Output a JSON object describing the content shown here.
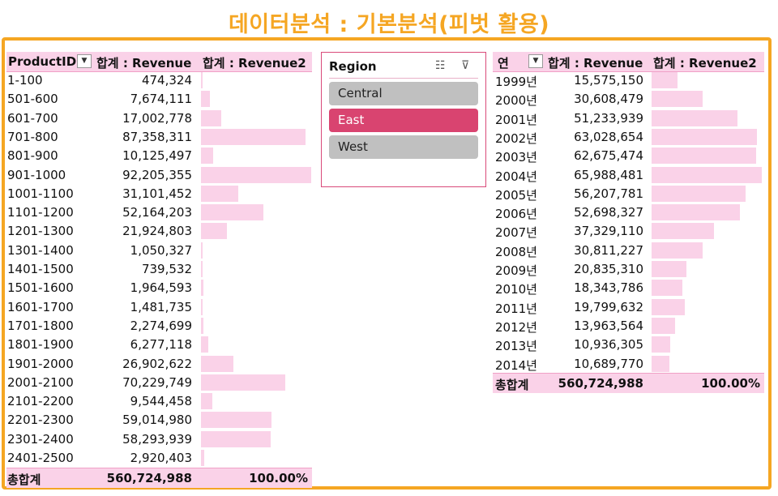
{
  "title": "데이터분석 : 기본분석(피벗 활용)",
  "colors": {
    "accent": "#f5a623",
    "header_fill": "#fad2e8",
    "bar_fill": "#fad2e8",
    "slicer_selected": "#d94470",
    "slicer_unselected": "#c0c0c0"
  },
  "left_pivot": {
    "headers": [
      "ProductID",
      "합계 : Revenue",
      "합계 : Revenue2"
    ],
    "rows": [
      {
        "label": "1-100",
        "value": "474,324",
        "pct": 0.0051
      },
      {
        "label": "501-600",
        "value": "7,674,111",
        "pct": 0.0832
      },
      {
        "label": "601-700",
        "value": "17,002,778",
        "pct": 0.1844
      },
      {
        "label": "701-800",
        "value": "87,358,311",
        "pct": 0.9474
      },
      {
        "label": "801-900",
        "value": "10,125,497",
        "pct": 0.1098
      },
      {
        "label": "901-1000",
        "value": "92,205,355",
        "pct": 1.0
      },
      {
        "label": "1001-1100",
        "value": "31,101,452",
        "pct": 0.3373
      },
      {
        "label": "1101-1200",
        "value": "52,164,203",
        "pct": 0.5657
      },
      {
        "label": "1201-1300",
        "value": "21,924,803",
        "pct": 0.2378
      },
      {
        "label": "1301-1400",
        "value": "1,050,327",
        "pct": 0.0114
      },
      {
        "label": "1401-1500",
        "value": "739,532",
        "pct": 0.008
      },
      {
        "label": "1501-1600",
        "value": "1,964,593",
        "pct": 0.0213
      },
      {
        "label": "1601-1700",
        "value": "1,481,735",
        "pct": 0.0161
      },
      {
        "label": "1701-1800",
        "value": "2,274,699",
        "pct": 0.0247
      },
      {
        "label": "1801-1900",
        "value": "6,277,118",
        "pct": 0.0681
      },
      {
        "label": "1901-2000",
        "value": "26,902,622",
        "pct": 0.2918
      },
      {
        "label": "2001-2100",
        "value": "70,229,749",
        "pct": 0.7617
      },
      {
        "label": "2101-2200",
        "value": "9,544,458",
        "pct": 0.1035
      },
      {
        "label": "2201-2300",
        "value": "59,014,980",
        "pct": 0.64
      },
      {
        "label": "2301-2400",
        "value": "58,293,939",
        "pct": 0.6322
      },
      {
        "label": "2401-2500",
        "value": "2,920,403",
        "pct": 0.0317
      }
    ],
    "total": {
      "label": "총합계",
      "value": "560,724,988",
      "pct_text": "100.00%"
    }
  },
  "slicer": {
    "title": "Region",
    "items": [
      {
        "label": "Central",
        "selected": false
      },
      {
        "label": "East",
        "selected": true
      },
      {
        "label": "West",
        "selected": false
      }
    ]
  },
  "right_pivot": {
    "headers": [
      "연",
      "합계 : Revenue",
      "합계 : Revenue2"
    ],
    "rows": [
      {
        "label": "1999년",
        "value": "15,575,150",
        "pct": 0.236
      },
      {
        "label": "2000년",
        "value": "30,608,479",
        "pct": 0.4639
      },
      {
        "label": "2001년",
        "value": "51,233,939",
        "pct": 0.7764
      },
      {
        "label": "2002년",
        "value": "63,028,654",
        "pct": 0.9551
      },
      {
        "label": "2003년",
        "value": "62,675,474",
        "pct": 0.9498
      },
      {
        "label": "2004년",
        "value": "65,988,481",
        "pct": 1.0
      },
      {
        "label": "2005년",
        "value": "56,207,781",
        "pct": 0.8518
      },
      {
        "label": "2006년",
        "value": "52,698,327",
        "pct": 0.7986
      },
      {
        "label": "2007년",
        "value": "37,329,110",
        "pct": 0.5657
      },
      {
        "label": "2008년",
        "value": "30,811,227",
        "pct": 0.4669
      },
      {
        "label": "2009년",
        "value": "20,835,310",
        "pct": 0.3157
      },
      {
        "label": "2010년",
        "value": "18,343,786",
        "pct": 0.278
      },
      {
        "label": "2011년",
        "value": "19,799,632",
        "pct": 0.3
      },
      {
        "label": "2012년",
        "value": "13,963,564",
        "pct": 0.2116
      },
      {
        "label": "2013년",
        "value": "10,936,305",
        "pct": 0.1657
      },
      {
        "label": "2014년",
        "value": "10,689,770",
        "pct": 0.162
      }
    ],
    "total": {
      "label": "총합계",
      "value": "560,724,988",
      "pct_text": "100.00%"
    }
  }
}
